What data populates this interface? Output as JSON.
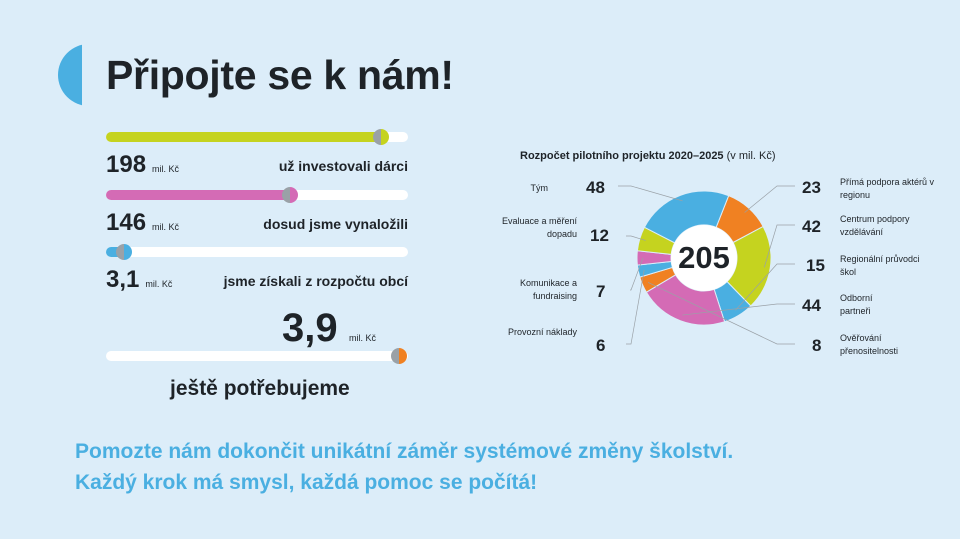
{
  "header": {
    "title": "Připojte se k nám!"
  },
  "progress": [
    {
      "amount": "198",
      "unit": "mil. Kč",
      "label": "už investovali dárci",
      "fraction": 0.91,
      "color": "#c5d31f",
      "knob_color": "#c5d31f"
    },
    {
      "amount": "146",
      "unit": "mil. Kč",
      "label": "dosud jsme vynaložili",
      "fraction": 0.61,
      "color": "#d46bb5",
      "knob_color": "#d46bb5"
    },
    {
      "amount": "3,1",
      "unit": "mil. Kč",
      "label": "jsme získali z rozpočtu obcí",
      "fraction": 0.06,
      "color": "#4aafe1",
      "knob_color": "#4aafe1"
    }
  ],
  "need": {
    "amount": "3,9",
    "unit": "mil. Kč",
    "label": "ještě potřebujeme",
    "fraction": 0.97,
    "knob_color": "#f08122"
  },
  "chart": {
    "title": "Rozpočet pilotního projektu 2020–2025",
    "title_unit": "(v mil. Kč)",
    "total": "205",
    "left_labels": [
      {
        "label": "Tým",
        "value": "48"
      },
      {
        "label": "Evaluace a měření dopadu",
        "value": "12"
      },
      {
        "label": "Komunikace a fundraising",
        "value": "7"
      },
      {
        "label": "Provozní náklady",
        "value": "6"
      }
    ],
    "right_labels": [
      {
        "label": "Přímá podpora aktérů v regionu",
        "value": "23"
      },
      {
        "label": "Centrum podpory vzdělávání",
        "value": "42"
      },
      {
        "label": "Regionální průvodci škol",
        "value": "15"
      },
      {
        "label": "Odborní partneři",
        "value": "44"
      },
      {
        "label": "Ověřování přenositelnosti",
        "value": "8"
      }
    ]
  },
  "chart_data": {
    "type": "pie",
    "title": "Rozpočet pilotního projektu 2020–2025 (v mil. Kč)",
    "total": 205,
    "slices": [
      {
        "label": "Přímá podpora aktérů v regionu",
        "value": 23,
        "color": "#f08122"
      },
      {
        "label": "Centrum podpory vzdělávání",
        "value": 42,
        "color": "#c5d31f"
      },
      {
        "label": "Regionální průvodci škol",
        "value": 15,
        "color": "#4aafe1"
      },
      {
        "label": "Odborní partneři",
        "value": 44,
        "color": "#d46bb5"
      },
      {
        "label": "Ověřování přenositelnosti",
        "value": 8,
        "color": "#f08122"
      },
      {
        "label": "Provozní náklady",
        "value": 6,
        "color": "#4aafe1"
      },
      {
        "label": "Komunikace a fundraising",
        "value": 7,
        "color": "#d46bb5"
      },
      {
        "label": "Evaluace a měření dopadu",
        "value": 12,
        "color": "#c5d31f"
      },
      {
        "label": "Tým",
        "value": 48,
        "color": "#4aafe1"
      }
    ]
  },
  "footer": {
    "line1": "Pomozte nám dokončit unikátní záměr systémové změny školství.",
    "line2": "Každý krok má smysl, každá pomoc se počítá!"
  }
}
